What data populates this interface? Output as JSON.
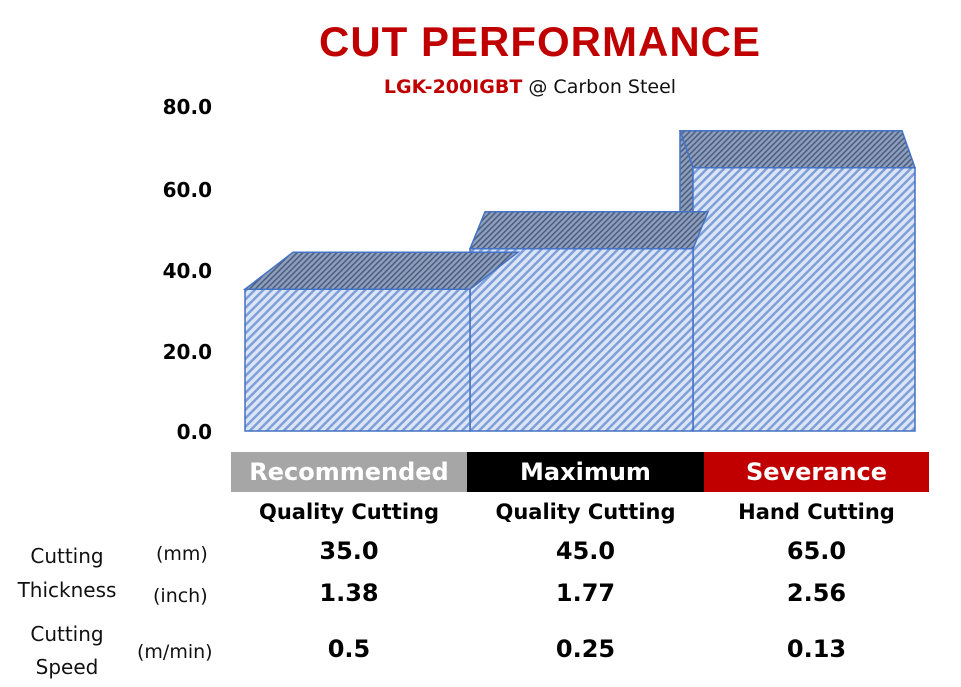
{
  "chart_data": {
    "type": "bar",
    "title": "CUT PERFORMANCE",
    "subtitle_model": "LGK-200IGBT",
    "subtitle_rest": "@ Carbon Steel",
    "categories": [
      "Recommended Quality Cutting",
      "Maximum Quality Cutting",
      "Severance Hand Cutting"
    ],
    "values": [
      35,
      45,
      65
    ],
    "ylim": [
      0,
      80
    ],
    "yticks": [
      "0.0",
      "20.0",
      "40.0",
      "60.0",
      "80.0"
    ],
    "bar_color": "#4472c4",
    "bar_fill": "#dbe5f7"
  },
  "table": {
    "columns": [
      {
        "head": "Recommended",
        "sub": "Quality Cutting",
        "color": "#a6a6a6",
        "mm": "35.0",
        "inch": "1.38",
        "speed": "0.5"
      },
      {
        "head": "Maximum",
        "sub": "Quality Cutting",
        "color": "#000000",
        "mm": "45.0",
        "inch": "1.77",
        "speed": "0.25"
      },
      {
        "head": "Severance",
        "sub": "Hand Cutting",
        "color": "#c00000",
        "mm": "65.0",
        "inch": "2.56",
        "speed": "0.13"
      }
    ],
    "row_thickness": {
      "label1": "Cutting",
      "label2": "Thickness",
      "unit_mm": "(mm)",
      "unit_inch": "(inch)"
    },
    "row_speed": {
      "label1": "Cutting",
      "label2": "Speed",
      "unit": "(m/min)"
    }
  }
}
